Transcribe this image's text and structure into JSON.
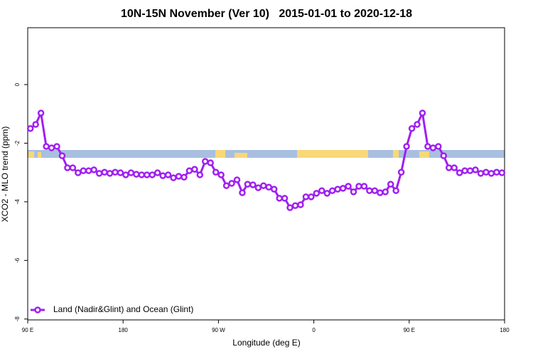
{
  "chart_data": {
    "type": "line",
    "title": "10N-15N November (Ver 10)   2015-01-01 to 2020-12-18",
    "x_label": "Longitude (deg E)",
    "y_label": "XCO2 - MLO trend (ppm)",
    "xlim": [
      90,
      540
    ],
    "xticks": [
      {
        "value": 90,
        "label": "90 E"
      },
      {
        "value": 180,
        "label": "180"
      },
      {
        "value": 270,
        "label": "90 W"
      },
      {
        "value": 360,
        "label": "0"
      },
      {
        "value": 450,
        "label": "90 E"
      },
      {
        "value": 540,
        "label": "180"
      }
    ],
    "ylim": [
      -8.03,
      1.94
    ],
    "yticks": [
      0,
      -2,
      -4,
      -6,
      -8
    ],
    "legend": "bottomleft",
    "x": [
      92.5,
      97.5,
      102.5,
      107.5,
      112.5,
      117.5,
      122.5,
      127.5,
      132.5,
      137.5,
      142.5,
      147.5,
      152.5,
      157.5,
      162.5,
      167.5,
      172.5,
      177.5,
      182.5,
      187.5,
      192.5,
      197.5,
      202.5,
      207.5,
      212.5,
      217.5,
      222.5,
      227.5,
      232.5,
      237.5,
      242.5,
      247.5,
      252.5,
      257.5,
      262.5,
      267.5,
      272.5,
      277.5,
      282.5,
      287.5,
      292.5,
      297.5,
      302.5,
      307.5,
      312.5,
      317.5,
      322.5,
      327.5,
      332.5,
      337.5,
      342.5,
      347.5,
      352.5,
      357.5,
      362.5,
      367.5,
      372.5,
      377.5,
      382.5,
      387.5,
      392.5,
      397.5,
      402.5,
      407.5,
      412.5,
      417.5,
      422.5,
      427.5,
      432.5,
      437.5,
      442.5,
      447.5,
      452.5,
      457.5,
      462.5,
      467.5,
      472.5,
      477.5,
      482.5,
      487.5,
      492.5,
      497.5,
      502.5,
      507.5,
      512.5,
      517.5,
      522.5,
      527.5,
      532.5,
      537.5
    ],
    "series": [
      {
        "name": "Land (Nadir&Glint) and Ocean (Glint)",
        "color": "#a020f0",
        "values": [
          -1.5,
          -1.36,
          -0.97,
          -2.11,
          -2.16,
          -2.11,
          -2.43,
          -2.84,
          -2.84,
          -3.01,
          -2.94,
          -2.94,
          -2.91,
          -3.03,
          -2.99,
          -3.03,
          -2.99,
          -3.01,
          -3.08,
          -3.01,
          -3.06,
          -3.08,
          -3.08,
          -3.08,
          -3.01,
          -3.11,
          -3.08,
          -3.18,
          -3.13,
          -3.16,
          -2.94,
          -2.89,
          -3.08,
          -2.62,
          -2.67,
          -2.99,
          -3.08,
          -3.45,
          -3.37,
          -3.25,
          -3.69,
          -3.4,
          -3.42,
          -3.52,
          -3.45,
          -3.5,
          -3.57,
          -3.88,
          -3.88,
          -4.2,
          -4.13,
          -4.1,
          -3.83,
          -3.83,
          -3.71,
          -3.62,
          -3.71,
          -3.62,
          -3.57,
          -3.54,
          -3.47,
          -3.66,
          -3.47,
          -3.47,
          -3.62,
          -3.62,
          -3.69,
          -3.66,
          -3.4,
          -3.62,
          -2.99,
          -2.11,
          -1.5,
          -1.36,
          -0.97,
          -2.11,
          -2.16,
          -2.11,
          -2.43,
          -2.84,
          -2.84,
          -3.01,
          -2.94,
          -2.94,
          -2.91,
          -3.03,
          -2.99,
          -3.03,
          -2.99,
          -3.01
        ]
      }
    ]
  }
}
